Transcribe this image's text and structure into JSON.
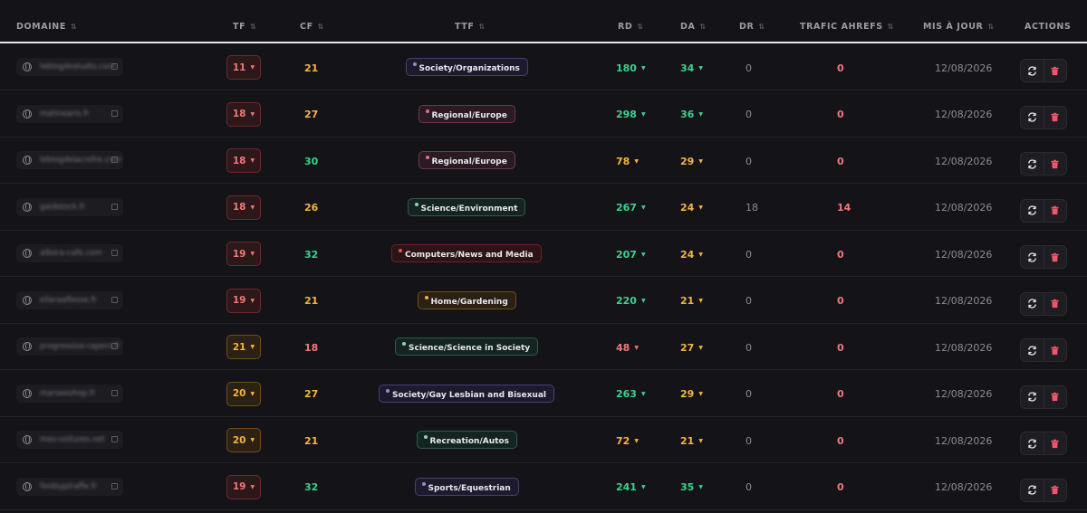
{
  "header": {
    "domaine": "DOMAINE",
    "tf": "TF",
    "cf": "CF",
    "ttf": "TTF",
    "rd": "RD",
    "da": "DA",
    "dr": "DR",
    "trafic": "TRAFIC AHREFS",
    "maj": "MIS À JOUR",
    "actions": "ACTIONS",
    "sort_icon": "sort-icon"
  },
  "colors": {
    "green": "#3ecf8e",
    "orange": "#f5b343",
    "red": "#f0787a",
    "muted": "#8a8a92"
  },
  "rows": [
    {
      "domain": "leblogdestudio.com",
      "tf": "11",
      "tf_tone": "red",
      "cf": "21",
      "cf_tone": "orange",
      "ttf": "Society/Organizations",
      "ttf_tone": "purple",
      "rd": "180",
      "rd_tone": "green",
      "da": "34",
      "da_tone": "green",
      "dr": "0",
      "trafic": "0",
      "trafic_tone": "red",
      "date": "12/08/2026"
    },
    {
      "domain": "matinearis.fr",
      "tf": "18",
      "tf_tone": "red",
      "cf": "27",
      "cf_tone": "orange",
      "ttf": "Regional/Europe",
      "ttf_tone": "pink",
      "rd": "298",
      "rd_tone": "green",
      "da": "36",
      "da_tone": "green",
      "dr": "0",
      "trafic": "0",
      "trafic_tone": "red",
      "date": "12/08/2026"
    },
    {
      "domain": "leblogdelacrefre.com",
      "tf": "18",
      "tf_tone": "red",
      "cf": "30",
      "cf_tone": "green",
      "ttf": "Regional/Europe",
      "ttf_tone": "pink",
      "rd": "78",
      "rd_tone": "orange",
      "da": "29",
      "da_tone": "orange",
      "dr": "0",
      "trafic": "0",
      "trafic_tone": "red",
      "date": "12/08/2026"
    },
    {
      "domain": "gaidstock.fr",
      "tf": "18",
      "tf_tone": "red",
      "cf": "26",
      "cf_tone": "orange",
      "ttf": "Science/Environment",
      "ttf_tone": "teal",
      "rd": "267",
      "rd_tone": "green",
      "da": "24",
      "da_tone": "orange",
      "dr": "18",
      "trafic": "14",
      "trafic_tone": "red",
      "date": "12/08/2026"
    },
    {
      "domain": "albora-cafe.com",
      "tf": "19",
      "tf_tone": "red",
      "cf": "32",
      "cf_tone": "green",
      "ttf": "Computers/News and Media",
      "ttf_tone": "darkred",
      "rd": "207",
      "rd_tone": "green",
      "da": "24",
      "da_tone": "orange",
      "dr": "0",
      "trafic": "0",
      "trafic_tone": "red",
      "date": "12/08/2026"
    },
    {
      "domain": "ellaraalfesse.fr",
      "tf": "19",
      "tf_tone": "red",
      "cf": "21",
      "cf_tone": "orange",
      "ttf": "Home/Gardening",
      "ttf_tone": "amber",
      "rd": "220",
      "rd_tone": "green",
      "da": "21",
      "da_tone": "orange",
      "dr": "0",
      "trafic": "0",
      "trafic_tone": "red",
      "date": "12/08/2026"
    },
    {
      "domain": "progressive-rapers.fr",
      "tf": "21",
      "tf_tone": "orange",
      "cf": "18",
      "cf_tone": "red",
      "ttf": "Science/Science in Society",
      "ttf_tone": "teal",
      "rd": "48",
      "rd_tone": "red",
      "da": "27",
      "da_tone": "orange",
      "dr": "0",
      "trafic": "0",
      "trafic_tone": "red",
      "date": "12/08/2026"
    },
    {
      "domain": "marseeshop.fr",
      "tf": "20",
      "tf_tone": "orange",
      "cf": "27",
      "cf_tone": "orange",
      "ttf": "Society/Gay Lesbian and Bisexual",
      "ttf_tone": "purple",
      "rd": "263",
      "rd_tone": "green",
      "da": "29",
      "da_tone": "orange",
      "dr": "0",
      "trafic": "0",
      "trafic_tone": "red",
      "date": "12/08/2026"
    },
    {
      "domain": "mes-voitures.net",
      "tf": "20",
      "tf_tone": "orange",
      "cf": "21",
      "cf_tone": "orange",
      "ttf": "Recreation/Autos",
      "ttf_tone": "teal",
      "rd": "72",
      "rd_tone": "orange",
      "da": "21",
      "da_tone": "orange",
      "dr": "0",
      "trafic": "0",
      "trafic_tone": "red",
      "date": "12/08/2026"
    },
    {
      "domain": "fordsyplraffe.fr",
      "tf": "19",
      "tf_tone": "red",
      "cf": "32",
      "cf_tone": "green",
      "ttf": "Sports/Equestrian",
      "ttf_tone": "purple",
      "rd": "241",
      "rd_tone": "green",
      "da": "35",
      "da_tone": "green",
      "dr": "0",
      "trafic": "0",
      "trafic_tone": "red",
      "date": "12/08/2026"
    }
  ]
}
